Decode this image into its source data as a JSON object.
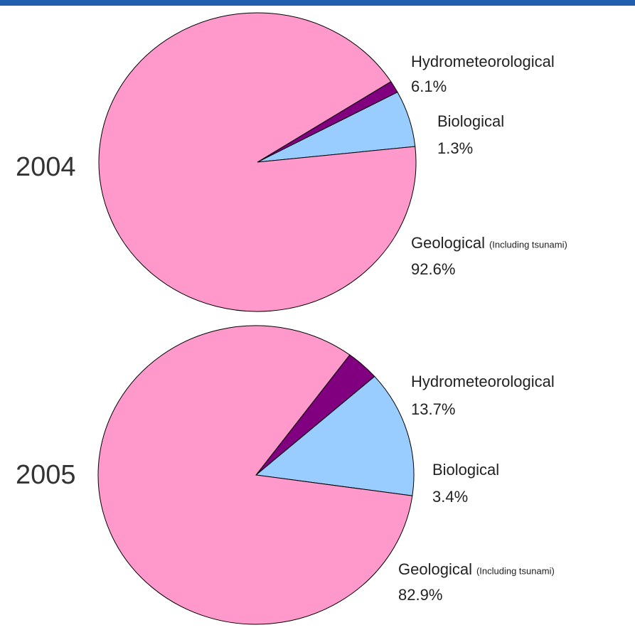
{
  "chart_data": [
    {
      "type": "pie",
      "title": "2004",
      "categories": [
        "Hydrometeorological",
        "Biological",
        "Geological"
      ],
      "values": [
        6.1,
        1.3,
        92.6
      ],
      "value_labels": [
        "6.1%",
        "1.3%",
        "92.6%"
      ],
      "colors": [
        "#99ccff",
        "#800080",
        "#ff99cc"
      ],
      "annotations": [
        "(Including tsunami)"
      ],
      "startangle": 6,
      "counterclockwise": true
    },
    {
      "type": "pie",
      "title": "2005",
      "categories": [
        "Hydrometeorological",
        "Biological",
        "Geological"
      ],
      "values": [
        13.7,
        3.4,
        82.9
      ],
      "value_labels": [
        "13.7%",
        "3.4%",
        "82.9%"
      ],
      "colors": [
        "#99ccff",
        "#800080",
        "#ff99cc"
      ],
      "annotations": [
        "(Including tsunami)"
      ],
      "startangle": -8,
      "counterclockwise": true
    }
  ]
}
